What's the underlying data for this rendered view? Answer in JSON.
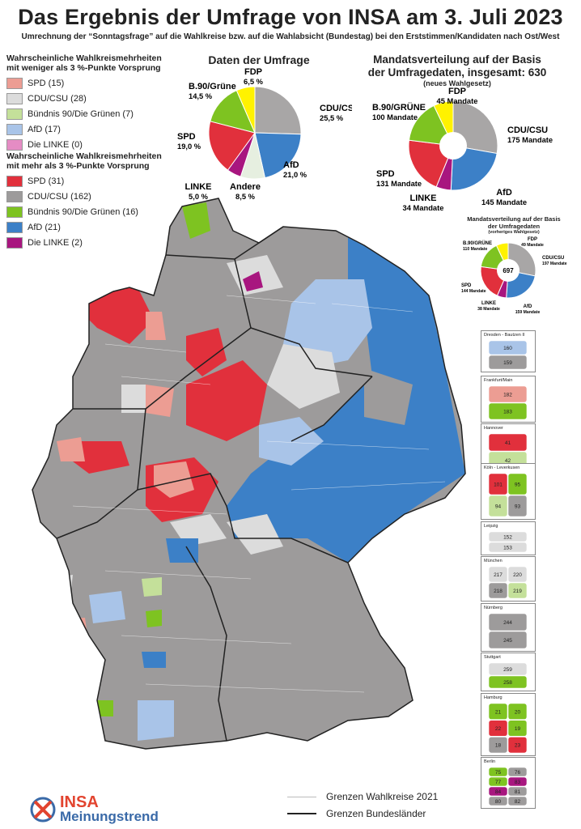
{
  "header": {
    "title": "Das Ergebnis der Umfrage von INSA am 3. Juli 2023",
    "subtitle": "Umrechnung der “Sonntagsfrage” auf die Wahlkreise bzw. auf die Wahlabsicht (Bundestag) bei den Erststimmen/Kandidaten nach Ost/West"
  },
  "legend_low": {
    "title_line1": "Wahrscheinliche Wahlkreismehrheiten",
    "title_line2": "mit weniger als 3 %-Punkte Vorsprung",
    "items": [
      {
        "label": "SPD (15)",
        "color": "#ec9d93"
      },
      {
        "label": "CDU/CSU (28)",
        "color": "#dcdcdc"
      },
      {
        "label": "Bündnis 90/Die Grünen (7)",
        "color": "#c4e09a"
      },
      {
        "label": "AfD (17)",
        "color": "#a9c4e8"
      },
      {
        "label": "Die LINKE (0)",
        "color": "#e58cc4"
      }
    ]
  },
  "legend_high": {
    "title_line1": "Wahrscheinliche Wahlkreismehrheiten",
    "title_line2": "mit mehr als 3 %-Punkte Vorsprung",
    "items": [
      {
        "label": "SPD (31)",
        "color": "#e1303c"
      },
      {
        "label": "CDU/CSU (162)",
        "color": "#9d9b9b"
      },
      {
        "label": "Bündnis 90/Die Grünen (16)",
        "color": "#7ec321"
      },
      {
        "label": "AfD (21)",
        "color": "#3c80c7"
      },
      {
        "label": "Die LINKE (2)",
        "color": "#a8167f"
      }
    ]
  },
  "survey_chart": {
    "title": "Daten der Umfrage",
    "slices": [
      {
        "party": "CDU/CSU",
        "value_label": "25,5 %",
        "value": 25.5,
        "color": "#a8a6a6"
      },
      {
        "party": "AfD",
        "value_label": "21,0 %",
        "value": 21.0,
        "color": "#3c80c7"
      },
      {
        "party": "Andere",
        "value_label": "8,5 %",
        "value": 8.5,
        "color": "#e6efe0"
      },
      {
        "party": "LINKE",
        "value_label": "5,0 %",
        "value": 5.0,
        "color": "#a8167f"
      },
      {
        "party": "SPD",
        "value_label": "19,0 %",
        "value": 19.0,
        "color": "#e1303c"
      },
      {
        "party": "B.90/Grüne",
        "value_label": "14,5 %",
        "value": 14.5,
        "color": "#7ec321"
      },
      {
        "party": "FDP",
        "value_label": "6,5 %",
        "value": 6.5,
        "color": "#fff200"
      }
    ]
  },
  "seats_chart": {
    "title_line1": "Mandatsverteilung auf der Basis",
    "title_line2": "der Umfragedaten, insgesamt: 630",
    "note": "(neues Wahlgesetz)",
    "slices": [
      {
        "party": "CDU/CSU",
        "value_label": "175 Mandate",
        "value": 175,
        "color": "#a8a6a6"
      },
      {
        "party": "AfD",
        "value_label": "145 Mandate",
        "value": 145,
        "color": "#3c80c7"
      },
      {
        "party": "LINKE",
        "value_label": "34 Mandate",
        "value": 34,
        "color": "#a8167f"
      },
      {
        "party": "SPD",
        "value_label": "131 Mandate",
        "value": 131,
        "color": "#e1303c"
      },
      {
        "party": "B.90/GRÜNE",
        "value_label": "100 Mandate",
        "value": 100,
        "color": "#7ec321"
      },
      {
        "party": "FDP",
        "value_label": "45 Mandate",
        "value": 45,
        "color": "#fff200"
      }
    ]
  },
  "seats_old_chart": {
    "title_line1": "Mandatsverteilung auf der Basis",
    "title_line2": "der Umfragedaten",
    "note": "(vorheriges Wahlgesetz)",
    "total": "697",
    "slices": [
      {
        "party": "CDU/CSU",
        "value_label": "197 Mandate",
        "value": 197,
        "color": "#a8a6a6"
      },
      {
        "party": "AfD",
        "value_label": "159 Mandate",
        "value": 159,
        "color": "#3c80c7"
      },
      {
        "party": "LINKE",
        "value_label": "38 Mandate",
        "value": 38,
        "color": "#a8167f"
      },
      {
        "party": "SPD",
        "value_label": "144 Mandate",
        "value": 144,
        "color": "#e1303c"
      },
      {
        "party": "B.90/GRÜNE",
        "value_label": "110 Mandate",
        "value": 110,
        "color": "#7ec321"
      },
      {
        "party": "FDP",
        "value_label": "49 Mandate",
        "value": 49,
        "color": "#fff200"
      }
    ]
  },
  "insets": [
    {
      "title": "Dresden - Bautzen II",
      "numbers": [
        "160",
        "159"
      ]
    },
    {
      "title": "Frankfurt/Main",
      "numbers": [
        "182",
        "183"
      ]
    },
    {
      "title": "Hannover",
      "numbers": [
        "41",
        "42"
      ]
    },
    {
      "title": "Köln - Leverkusen",
      "numbers": [
        "101",
        "95",
        "94",
        "93"
      ]
    },
    {
      "title": "Leipzig",
      "numbers": [
        "152",
        "153"
      ]
    },
    {
      "title": "München",
      "numbers": [
        "217",
        "220",
        "218",
        "219"
      ]
    },
    {
      "title": "Nürnberg",
      "numbers": [
        "244",
        "245"
      ]
    },
    {
      "title": "Stuttgart",
      "numbers": [
        "259",
        "258"
      ]
    },
    {
      "title": "Hamburg",
      "numbers": [
        "21",
        "20",
        "22",
        "19",
        "18",
        "23"
      ]
    },
    {
      "title": "Berlin",
      "numbers": [
        "75",
        "76",
        "77",
        "83",
        "84",
        "81",
        "80",
        "82"
      ]
    }
  ],
  "map_legend": {
    "constituency_borders": "Grenzen Wahlkreise 2021",
    "state_borders": "Grenzen Bundesländer"
  },
  "logo": {
    "brand": "INSA",
    "tagline": "Meinungstrend"
  }
}
